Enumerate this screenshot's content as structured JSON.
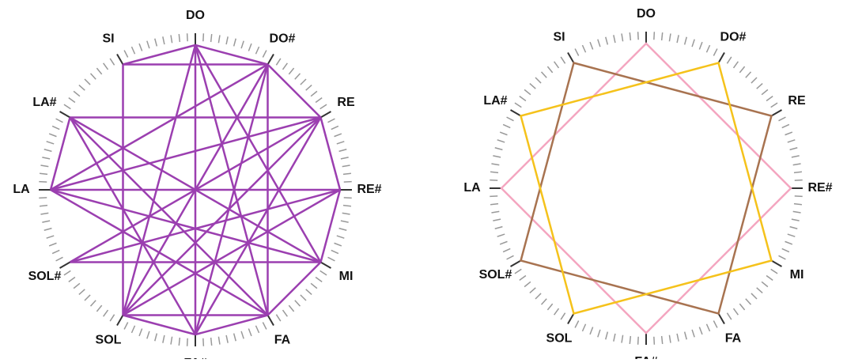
{
  "notes": [
    "DO",
    "DO#",
    "RE",
    "RE#",
    "MI",
    "FA",
    "FA#",
    "SOL",
    "SOL#",
    "LA",
    "LA#",
    "SI"
  ],
  "left": {
    "color": "#9b3fb0",
    "edges": [
      [
        0,
        1
      ],
      [
        1,
        2
      ],
      [
        2,
        3
      ],
      [
        3,
        4
      ],
      [
        4,
        5
      ],
      [
        5,
        6
      ],
      [
        6,
        7
      ],
      [
        9,
        10
      ],
      [
        11,
        0
      ],
      [
        11,
        1
      ],
      [
        1,
        5
      ],
      [
        5,
        7
      ],
      [
        7,
        11
      ],
      [
        9,
        3
      ],
      [
        8,
        4
      ],
      [
        10,
        2
      ],
      [
        0,
        4
      ],
      [
        0,
        5
      ],
      [
        0,
        6
      ],
      [
        0,
        7
      ],
      [
        9,
        1
      ],
      [
        9,
        2
      ],
      [
        9,
        4
      ],
      [
        9,
        5
      ],
      [
        10,
        4
      ],
      [
        10,
        5
      ],
      [
        8,
        2
      ],
      [
        8,
        3
      ],
      [
        6,
        1
      ],
      [
        6,
        2
      ],
      [
        6,
        10
      ],
      [
        7,
        1
      ],
      [
        7,
        2
      ],
      [
        7,
        3
      ]
    ]
  },
  "right": {
    "polygons": [
      {
        "color": "#f4a6c0",
        "vertices": [
          0,
          3,
          6,
          9
        ]
      },
      {
        "color": "#a87350",
        "vertices": [
          11,
          2,
          5,
          8
        ]
      },
      {
        "color": "#f5c21b",
        "vertices": [
          1,
          4,
          7,
          10
        ]
      }
    ]
  }
}
